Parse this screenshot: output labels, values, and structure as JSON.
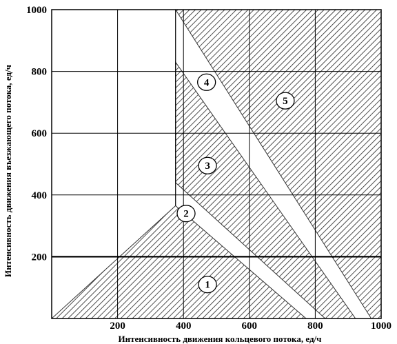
{
  "chart_data": {
    "type": "area",
    "xlabel": "Интенсивность движения кольцевого потока, ед/ч",
    "ylabel": "Интенсивность движения въезжающего потока, ед/ч",
    "xlim": [
      0,
      1000
    ],
    "ylim": [
      0,
      1000
    ],
    "x_ticks": [
      "200",
      "400",
      "600",
      "800",
      "1000"
    ],
    "y_ticks": [
      "200",
      "400",
      "600",
      "800",
      "1000"
    ],
    "grid": true,
    "reference_line_y": 200,
    "zones": [
      {
        "label": "1",
        "hatched": true,
        "marker_at": [
          473,
          110
        ],
        "polygon": [
          [
            0,
            0
          ],
          [
            376,
            365
          ],
          [
            772,
            0
          ]
        ]
      },
      {
        "label": "2",
        "hatched": false,
        "marker_at": [
          408,
          340
        ],
        "polygon": [
          [
            376,
            365
          ],
          [
            772,
            0
          ],
          [
            830,
            0
          ],
          [
            376,
            440
          ]
        ]
      },
      {
        "label": "3",
        "hatched": true,
        "marker_at": [
          473,
          495
        ],
        "polygon": [
          [
            376,
            440
          ],
          [
            830,
            0
          ],
          [
            922,
            0
          ],
          [
            376,
            830
          ]
        ]
      },
      {
        "label": "4",
        "hatched": false,
        "marker_at": [
          470,
          765
        ],
        "polygon": [
          [
            376,
            830
          ],
          [
            922,
            0
          ],
          [
            970,
            0
          ],
          [
            376,
            1000
          ]
        ]
      },
      {
        "label": "5",
        "hatched": true,
        "marker_at": [
          709,
          705
        ],
        "polygon": [
          [
            376,
            1000
          ],
          [
            970,
            0
          ],
          [
            1000,
            0
          ],
          [
            1000,
            1000
          ]
        ]
      }
    ]
  }
}
